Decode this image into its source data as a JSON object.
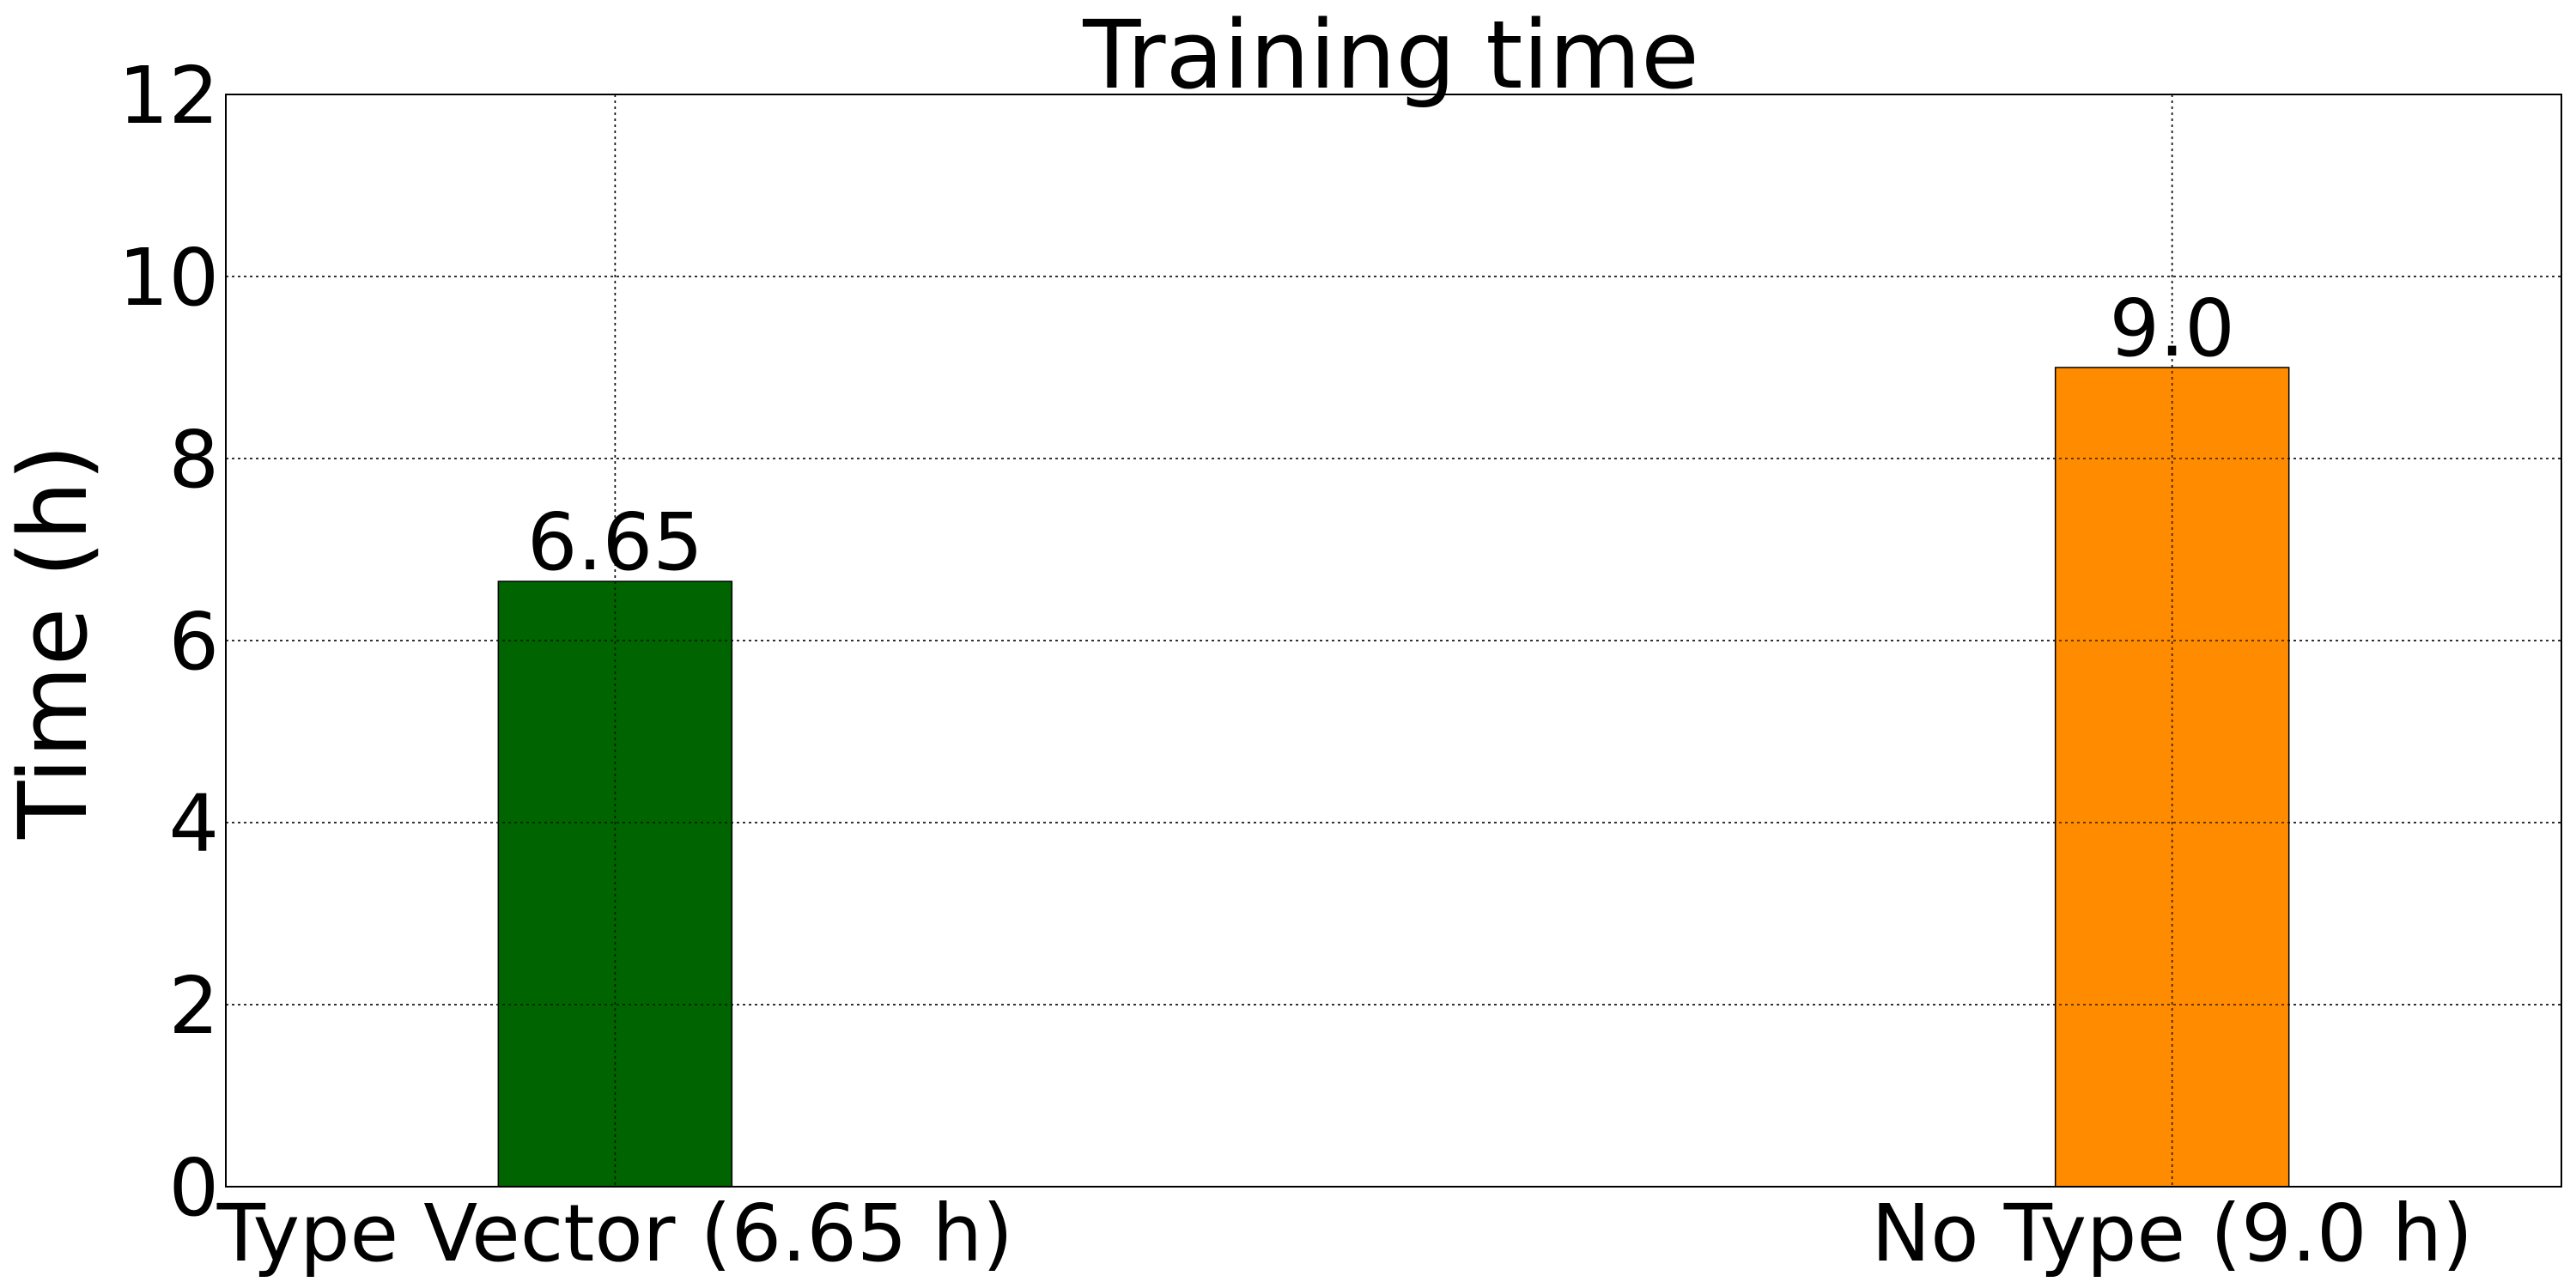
{
  "chart_data": {
    "type": "bar",
    "title": "Training time",
    "xlabel": "",
    "ylabel": "Time (h)",
    "categories": [
      "Type Vector (6.65 h)",
      "No Type (9.0 h)"
    ],
    "values": [
      6.65,
      9.0
    ],
    "value_labels": [
      "6.65",
      "9.0"
    ],
    "bar_colors": [
      "#006400",
      "#ff8c00"
    ],
    "ylim": [
      0,
      12
    ],
    "yticks": [
      0,
      2,
      4,
      6,
      8,
      10,
      12
    ],
    "grid": true,
    "legend": "none"
  }
}
